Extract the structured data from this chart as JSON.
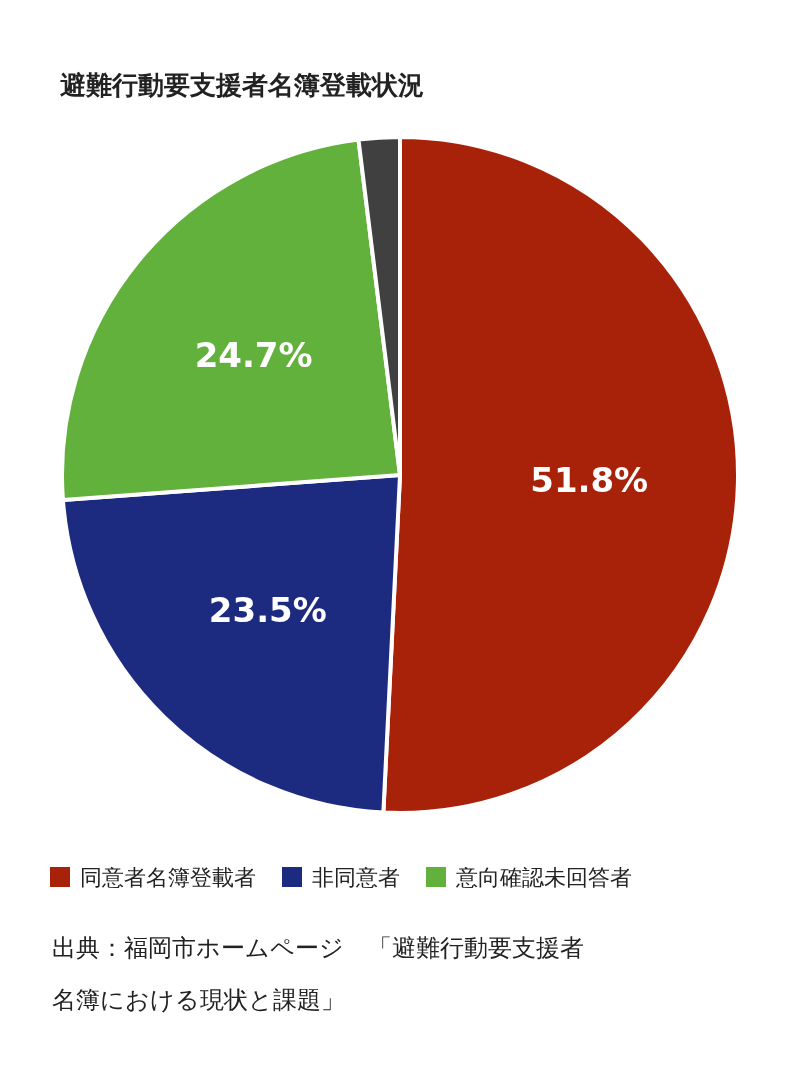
{
  "chart_data": {
    "type": "pie",
    "title": "避難行動要支援者名簿登載状況",
    "categories": [
      "同意者名簿登載者",
      "非同意者",
      "意向確認未回答者",
      null
    ],
    "values": [
      51.8,
      23.5,
      24.7,
      2.0
    ],
    "colors": [
      "#a8220a",
      "#1c2a80",
      "#62b13c",
      "#404040"
    ],
    "value_labels": [
      "51.8%",
      "23.5%",
      "24.7%",
      null
    ],
    "legend": "bottom",
    "annotations": [
      "出典：福岡市ホームページ　「避難行動要支援者名簿における現状と課題」"
    ]
  }
}
